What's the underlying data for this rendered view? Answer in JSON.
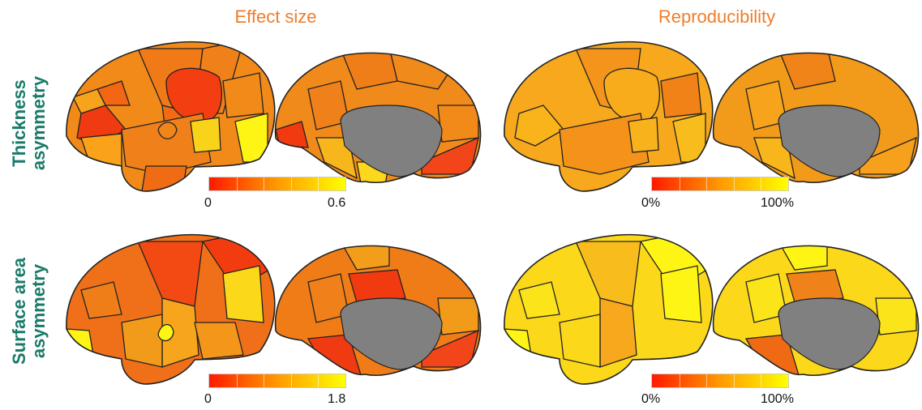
{
  "columns": [
    {
      "title": "Effect size"
    },
    {
      "title": "Reproducibility"
    }
  ],
  "rows": [
    {
      "title_line1": "Thickness",
      "title_line2": "asymmetry"
    },
    {
      "title_line1": "Surface area",
      "title_line2": "asymmetry"
    }
  ],
  "colorbars": [
    {
      "min_label": "0",
      "max_label": "0.6"
    },
    {
      "min_label": "0%",
      "max_label": "100%"
    },
    {
      "min_label": "0",
      "max_label": "1.8"
    },
    {
      "min_label": "0%",
      "max_label": "100%"
    }
  ],
  "colors": {
    "title_orange": "#f07c28",
    "row_label_teal": "#1a7a6a",
    "scale_low": "#ff1a00",
    "scale_mid": "#ff9a00",
    "scale_high": "#ffff00",
    "medial_wall": "#808080",
    "outline": "#222222"
  },
  "icons": [
    "lateral-brain-surface",
    "medial-brain-surface"
  ]
}
